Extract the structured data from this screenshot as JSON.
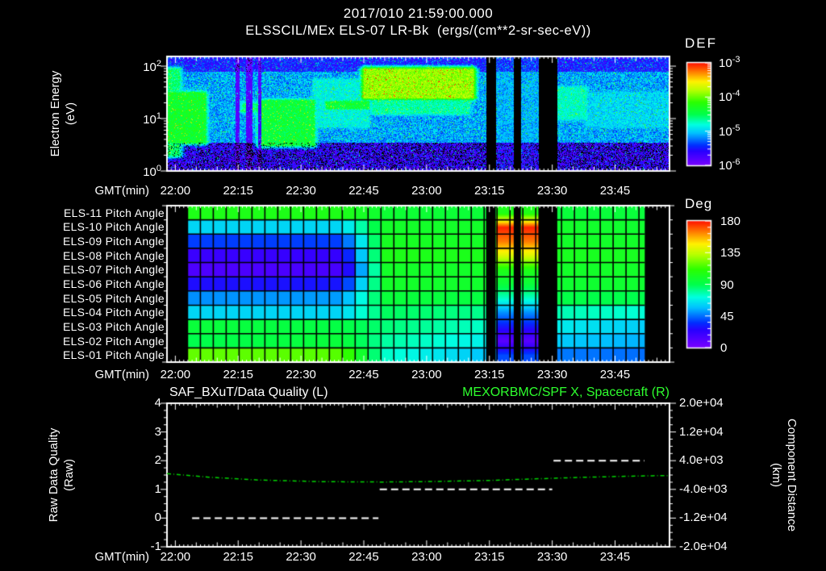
{
  "window": {
    "title_line1": "2017/010 21:59:00.000",
    "title_line2": "ELSSCIL/MEx ELS-07 LR-Bk  (ergs/(cm**2-sr-sec-eV))"
  },
  "colors": {
    "background": "#000000",
    "text": "#ffffff",
    "green_title": "#2eff2e",
    "curve_green": "#00d400",
    "quality_white": "#ffffff",
    "grid_black": "#000000",
    "colormap": [
      [
        0.0,
        "#7b00ff"
      ],
      [
        0.14,
        "#2a00ff"
      ],
      [
        0.2,
        "#0030ff"
      ],
      [
        0.32,
        "#00c3ff"
      ],
      [
        0.4,
        "#00ffe1"
      ],
      [
        0.5,
        "#00ff4d"
      ],
      [
        0.62,
        "#2bff00"
      ],
      [
        0.74,
        "#baff00"
      ],
      [
        0.82,
        "#fff200"
      ],
      [
        0.9,
        "#ff9100"
      ],
      [
        1.0,
        "#ff1500"
      ]
    ]
  },
  "time_axis": {
    "label": "GMT(min)",
    "t0_min": -2,
    "t1_min": 118,
    "tick_labels": [
      "22:00",
      "22:15",
      "22:30",
      "22:45",
      "23:00",
      "23:15",
      "23:30",
      "23:45"
    ],
    "tick_minutes": [
      0,
      15,
      30,
      45,
      60,
      75,
      90,
      105
    ]
  },
  "panel_energy": {
    "ylabel_line1": "Electron Energy",
    "ylabel_line2": "(eV)",
    "tick_base": "10",
    "yticks": [
      {
        "exp": "2",
        "log": 2
      },
      {
        "exp": "1",
        "log": 1
      },
      {
        "exp": "0",
        "log": 0
      }
    ],
    "log_max": 2.185,
    "colorbar": {
      "title": "DEF",
      "tick_base": "10",
      "ticks": [
        "-3",
        "-4",
        "-5",
        "-6"
      ]
    }
  },
  "panel_pitch": {
    "row_labels": [
      "ELS-11 Pitch Angle",
      "ELS-10 Pitch Angle",
      "ELS-09 Pitch Angle",
      "ELS-08 Pitch Angle",
      "ELS-07 Pitch Angle",
      "ELS-06 Pitch Angle",
      "ELS-05 Pitch Angle",
      "ELS-04 Pitch Angle",
      "ELS-03 Pitch Angle",
      "ELS-02 Pitch Angle",
      "ELS-01 Pitch Angle"
    ],
    "colorbar": {
      "title": "Deg",
      "ticks": [
        "180",
        "135",
        "90",
        "45",
        "0"
      ]
    }
  },
  "panel_quality": {
    "title_left": "SAF_BXuT/Data Quality (L)",
    "title_right": "MEXORBMC/SPF X, Spacecraft (R)",
    "ylabel_line1": "Raw Data Quality",
    "ylabel_line2": "(Raw)",
    "left_ticks": [
      "4",
      "3",
      "2",
      "1",
      "0",
      "-1"
    ],
    "right_ticks": [
      "2.0e+04",
      "1.2e+04",
      "4.0e+03",
      "-4.0e+03",
      "-1.2e+04",
      "-2.0e+04"
    ],
    "right_label_line1": "Component Distance",
    "right_label_line2": "(km)"
  },
  "chart_data": [
    {
      "type": "heatmap",
      "title": "ELSSCIL/MEx ELS-07 LR-Bk",
      "units": "ergs/(cm**2-sr-sec-eV)",
      "x_range_gmt": [
        "21:58",
        "23:58"
      ],
      "y_axis": {
        "label": "Electron Energy (eV)",
        "scale": "log",
        "min": 1,
        "max": 153
      },
      "color_axis": {
        "label": "DEF",
        "min": 1e-06,
        "max": 0.001
      },
      "background_levels": {
        "low_energy_logE_below": 0.55,
        "low_val": 0.1,
        "mid_val": 0.3,
        "high_energy_logE_above": 1.9,
        "high_val": 0.17
      },
      "features": [
        {
          "t0": -2,
          "t1": 0.8,
          "logE0": 0.3,
          "logE1": 1.95,
          "amp": 0.55
        },
        {
          "t0": -2,
          "t1": 7,
          "logE0": 0.55,
          "logE1": 1.5,
          "amp": 0.62
        },
        {
          "t0": 20,
          "t1": 33,
          "logE0": 0.5,
          "logE1": 1.35,
          "amp": 0.6
        },
        {
          "t0": 16,
          "t1": 33,
          "logE0": 1.14,
          "logE1": 1.3,
          "amp": 0.55
        },
        {
          "t0": 33,
          "t1": 46,
          "logE0": 0.85,
          "logE1": 1.75,
          "amp": 0.45
        },
        {
          "t0": 36,
          "t1": 46,
          "logE0": 1.2,
          "logE1": 1.33,
          "amp": 0.6
        },
        {
          "t0": 45,
          "t1": 71,
          "logE0": 1.4,
          "logE1": 1.95,
          "amp": 0.78
        },
        {
          "t0": 47,
          "t1": 70,
          "logE0": 1.1,
          "logE1": 1.45,
          "amp": 0.5
        },
        {
          "t0": 78,
          "t1": 98,
          "logE0": 1.0,
          "logE1": 1.6,
          "amp": 0.48
        },
        {
          "t0": 98,
          "t1": 118,
          "logE0": 0.85,
          "logE1": 1.5,
          "amp": 0.4
        }
      ],
      "dark_stripes": [
        [
          14.3,
          15.3
        ],
        [
          16.8,
          18.3
        ],
        [
          19.6,
          20.4
        ]
      ],
      "gaps": [
        [
          74.2,
          76.5
        ],
        [
          80.8,
          82.5
        ],
        [
          86.7,
          91.2
        ]
      ],
      "low_signal_columns": [
        [
          76.5,
          80.8
        ],
        [
          82.5,
          86.7
        ]
      ]
    },
    {
      "type": "heatmap",
      "title": "ELS Pitch Angles",
      "rows": [
        "ELS-11",
        "ELS-10",
        "ELS-09",
        "ELS-08",
        "ELS-07",
        "ELS-06",
        "ELS-05",
        "ELS-04",
        "ELS-03",
        "ELS-02",
        "ELS-01"
      ],
      "value_axis": {
        "label": "Deg",
        "min": 0,
        "max": 180
      },
      "data_start_min": 2.9,
      "data_end_min": 112.1,
      "cell_minutes": 3.08,
      "profile_times": [
        3,
        40,
        50,
        90,
        112
      ],
      "row_profiles": [
        [
          105,
          105,
          97,
          95,
          95
        ],
        [
          62,
          62,
          100,
          100,
          98
        ],
        [
          38,
          38,
          102,
          100,
          100
        ],
        [
          20,
          22,
          105,
          103,
          102
        ],
        [
          14,
          16,
          100,
          100,
          100
        ],
        [
          28,
          30,
          100,
          98,
          98
        ],
        [
          50,
          52,
          95,
          92,
          90
        ],
        [
          62,
          62,
          88,
          78,
          73
        ],
        [
          95,
          92,
          85,
          68,
          60
        ],
        [
          90,
          95,
          80,
          60,
          55
        ],
        [
          120,
          118,
          75,
          47,
          45
        ]
      ],
      "special_columns": {
        "ranges": [
          [
            76.5,
            80.8
          ],
          [
            82.5,
            86.7
          ]
        ],
        "values": [
          105,
          178,
          165,
          140,
          105,
          95,
          75,
          50,
          30,
          10,
          40
        ]
      },
      "gaps": [
        [
          74.2,
          76.5
        ],
        [
          80.8,
          82.5
        ],
        [
          86.7,
          91.2
        ]
      ]
    },
    {
      "type": "line",
      "title_left": "SAF_BXuT/Data Quality (L)",
      "title_right": "MEXORBMC/SPF X, Spacecraft (R)",
      "left_axis": {
        "label": "Raw Data Quality (Raw)",
        "min": -1,
        "max": 4
      },
      "right_axis": {
        "label": "Component Distance (km)",
        "min": -20000,
        "max": 20000
      },
      "quality_segments": [
        {
          "value": 0,
          "t0": 4,
          "t1": 48.5
        },
        {
          "value": 1,
          "t0": 48.8,
          "t1": 90
        },
        {
          "value": 2,
          "t0": 90.3,
          "t1": 112
        }
      ],
      "spacecraft_x_km": {
        "t": [
          -2,
          8,
          20,
          35,
          50,
          62,
          75,
          85,
          93,
          100,
          108,
          114,
          118
        ],
        "v": [
          400,
          -600,
          -1400,
          -1850,
          -1950,
          -1800,
          -1500,
          -1100,
          -800,
          -550,
          -350,
          -200,
          -150
        ]
      }
    }
  ]
}
